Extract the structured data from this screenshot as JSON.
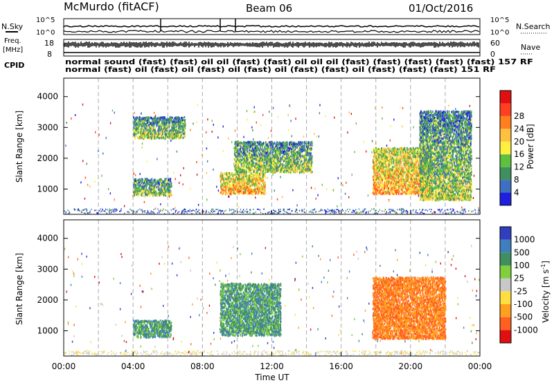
{
  "header": {
    "station": "McMurdo (fitACF)",
    "beam": "Beam 06",
    "date": "01/Oct/2016"
  },
  "strips": {
    "nsky_label": "N.Sky",
    "nsearch_label": "N.Search",
    "noise_ticks": [
      "10^5",
      "10^0"
    ],
    "freq_label_1": "Freq.",
    "freq_label_2": "[MHz]",
    "freq_ticks": [
      "18",
      "8"
    ],
    "nave_label": "Nave",
    "nave_ticks": [
      "60",
      "0"
    ],
    "cpid_label": "CPID",
    "cpid_row1": "normal sound (fast) (fast) oil oil (fast) (fast) oil oil oil (fast) (fast) (fast) (fast) (fast) 157 RF",
    "cpid_row2": "normal (fast) oil (fast) oil (fast) oil (fast) oil (fast) (fast) oil (fast) (fast) (fast) 151 RF"
  },
  "colors": {
    "power": [
      "#1f1fe0",
      "#3f6fc0",
      "#3f8f5f",
      "#5fbf3f",
      "#ffef3f",
      "#ffbf3f",
      "#ff7f1f",
      "#ff3f1f",
      "#e01010"
    ],
    "velocity": [
      "#2f3fc0",
      "#3f7fbf",
      "#3f8f5f",
      "#7fcf3f",
      "#c8c8c8",
      "#ffdf3f",
      "#ff9f1f",
      "#ff5f1f",
      "#e01010"
    ]
  },
  "chart_data": [
    {
      "type": "heatmap",
      "panel": "power",
      "ylabel": "Slant Range [km]",
      "ylim": [
        180,
        4600
      ],
      "yticks": [
        "1000",
        "2000",
        "3000",
        "4000"
      ],
      "xlim": [
        0,
        24
      ],
      "colorbar_label": "Power [dB]",
      "colorbar_ticks": [
        "4",
        "8",
        "12",
        "16",
        "20",
        "24",
        "28"
      ],
      "patches": [
        {
          "t0": 4.0,
          "t1": 6.2,
          "r0": 750,
          "r1": 1300,
          "dominant": "12-20 dB"
        },
        {
          "t0": 4.0,
          "t1": 7.0,
          "r0": 2600,
          "r1": 3300,
          "dominant": "8-16 dB"
        },
        {
          "t0": 9.0,
          "t1": 11.6,
          "r0": 800,
          "r1": 1500,
          "dominant": "16-24 dB"
        },
        {
          "t0": 9.8,
          "t1": 14.3,
          "r0": 1500,
          "r1": 2500,
          "dominant": "8-16 dB"
        },
        {
          "t0": 17.8,
          "t1": 21.2,
          "r0": 800,
          "r1": 2300,
          "dominant": "16-28 dB"
        },
        {
          "t0": 20.5,
          "t1": 23.5,
          "r0": 600,
          "r1": 3500,
          "dominant": "8-20 dB"
        }
      ]
    },
    {
      "type": "heatmap",
      "panel": "velocity",
      "ylabel": "Slant Range [km]",
      "ylim": [
        180,
        4600
      ],
      "yticks": [
        "1000",
        "2000",
        "3000",
        "4000"
      ],
      "xlabel": "Time UT",
      "xticks": [
        "00:00",
        "04:00",
        "08:00",
        "12:00",
        "16:00",
        "20:00",
        "00:00"
      ],
      "xlim": [
        0,
        24
      ],
      "colorbar_label": "Velocity [m s^-1]",
      "colorbar_ticks": [
        "1000",
        "500",
        "100",
        "25",
        "-25",
        "-100",
        "-500",
        "-1000"
      ],
      "patches": [
        {
          "t0": 4.0,
          "t1": 6.2,
          "r0": 750,
          "r1": 1300,
          "dominant": "25 to 500 m/s"
        },
        {
          "t0": 9.0,
          "t1": 12.5,
          "r0": 800,
          "r1": 2500,
          "dominant": "25 to 500 m/s"
        },
        {
          "t0": 17.8,
          "t1": 22.0,
          "r0": 700,
          "r1": 2700,
          "dominant": "-100 to -500 m/s"
        }
      ]
    }
  ]
}
